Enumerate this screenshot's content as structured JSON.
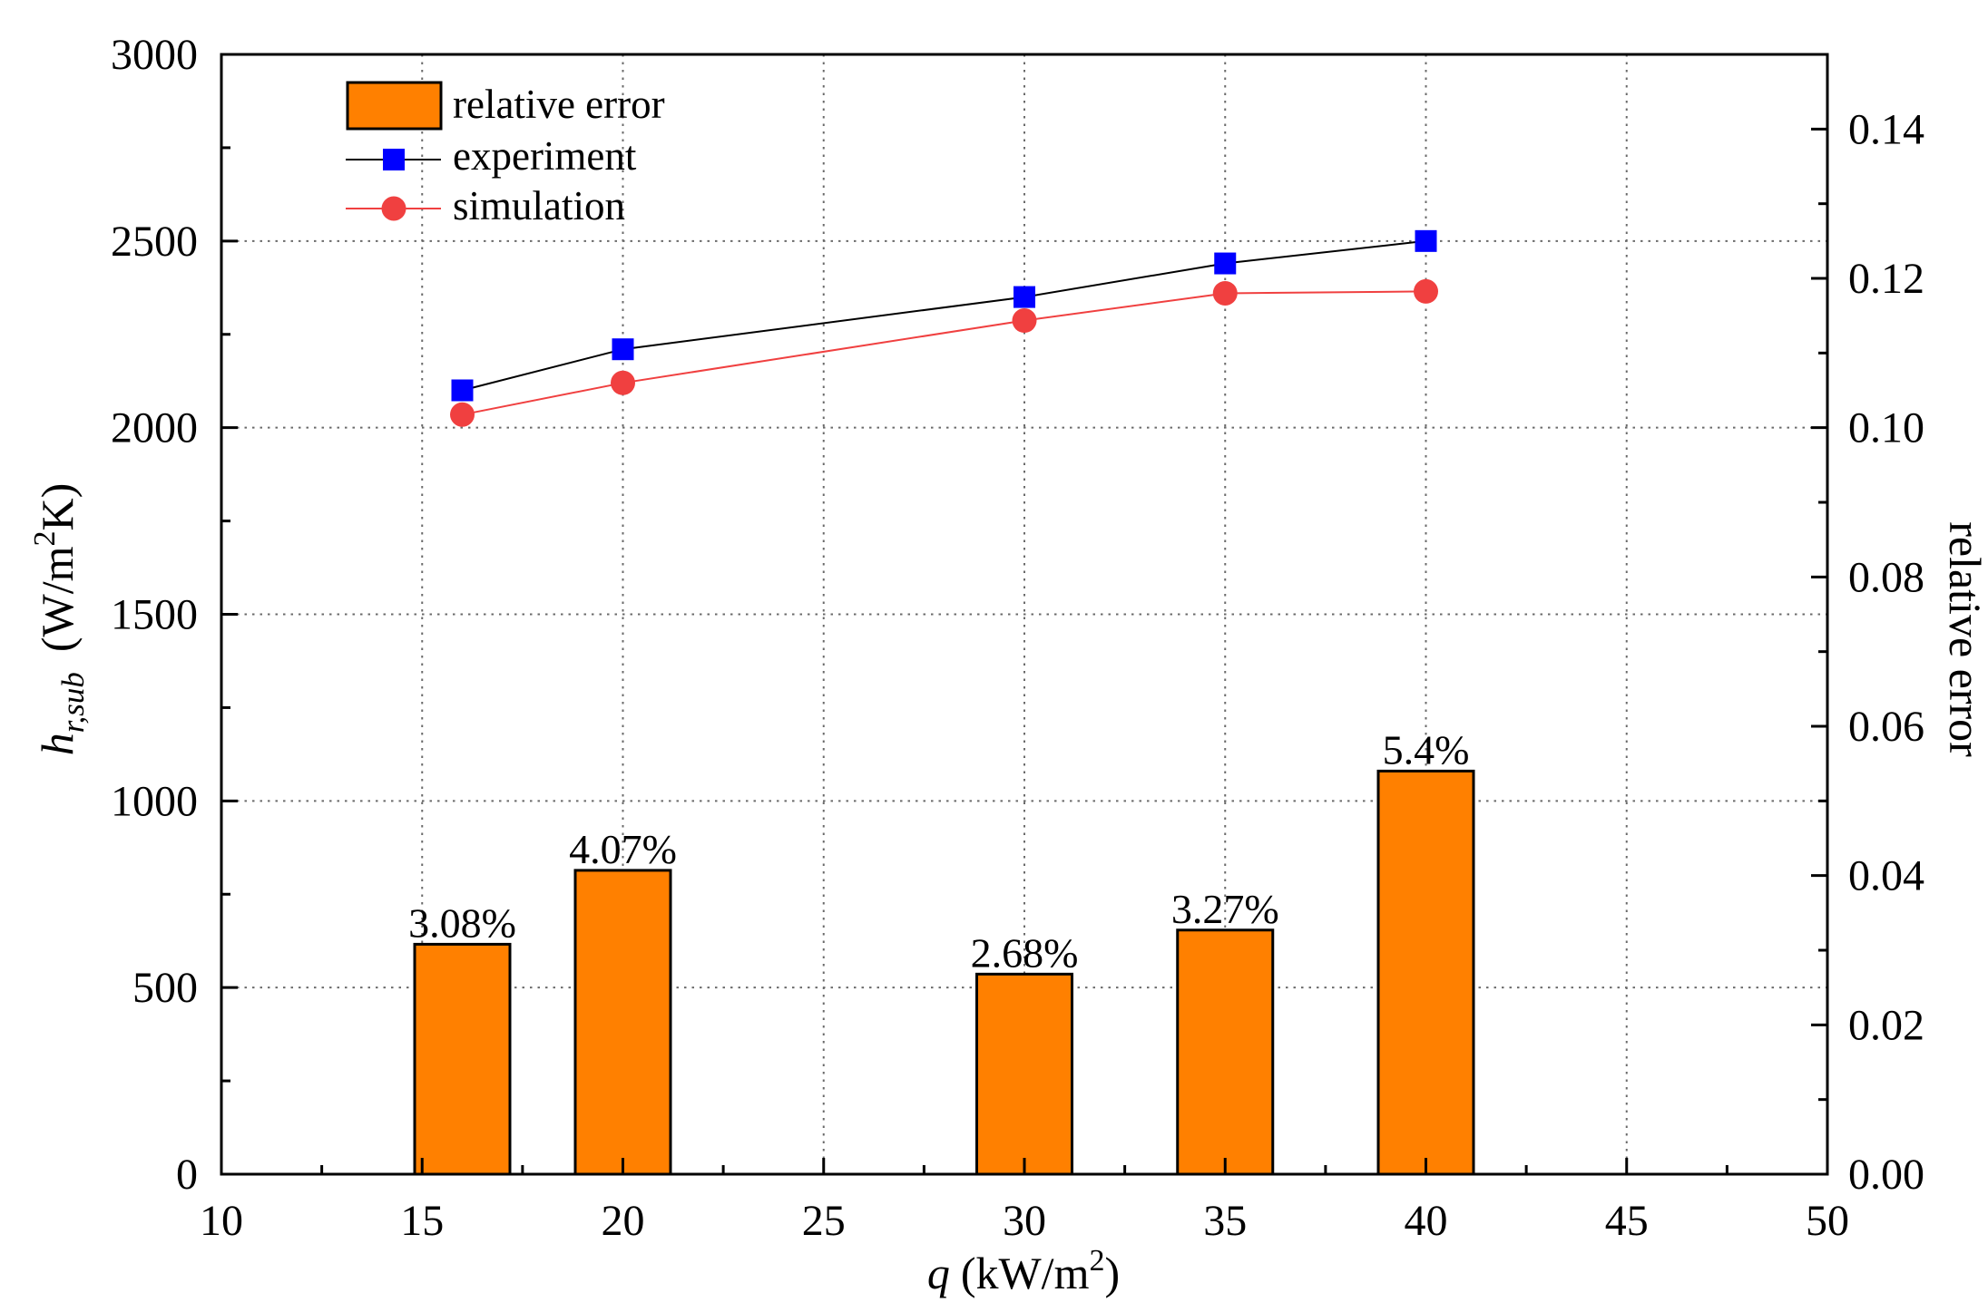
{
  "chart_data": {
    "type": "bar",
    "x": [
      16,
      20,
      30,
      35,
      40
    ],
    "xlabel": {
      "variable": "q",
      "unit": "(kW/m",
      "superscript": "2",
      "tail": ")"
    },
    "ylabel": {
      "variable": "h",
      "subscript": "r,sub",
      "unit": "(W/m",
      "superscript": "2",
      "tail": "K)"
    },
    "y2label": "relative error",
    "xlim": [
      10,
      50
    ],
    "ylim": [
      0,
      3000
    ],
    "y2lim": [
      0,
      0.15
    ],
    "xticks": [
      10,
      15,
      20,
      25,
      30,
      35,
      40,
      45,
      50
    ],
    "xtick_labels": [
      "10",
      "15",
      "20",
      "25",
      "30",
      "35",
      "40",
      "45",
      "50"
    ],
    "yticks": [
      0,
      500,
      1000,
      1500,
      2000,
      2500,
      3000
    ],
    "ytick_labels": [
      "0",
      "500",
      "1000",
      "1500",
      "2000",
      "2500",
      "3000"
    ],
    "y2ticks": [
      0,
      0.02,
      0.04,
      0.06,
      0.08,
      0.1,
      0.12,
      0.14
    ],
    "y2tick_labels": [
      "0.00",
      "0.02",
      "0.04",
      "0.06",
      "0.08",
      "0.10",
      "0.12",
      "0.14"
    ],
    "minor_tick_step": {
      "x": 2.5,
      "y": 250,
      "y2": 0.01
    },
    "grid": true,
    "legend": {
      "position": "top-left"
    },
    "series": [
      {
        "name": "relative error",
        "type": "bar",
        "axis": "right",
        "values": [
          0.0308,
          0.0407,
          0.0268,
          0.0327,
          0.054
        ],
        "labels": [
          "3.08%",
          "4.07%",
          "2.68%",
          "3.27%",
          "5.4%"
        ],
        "fill_color": "#FF8000",
        "edge_color": "#000000"
      },
      {
        "name": "experiment",
        "type": "line",
        "axis": "left",
        "marker": "square",
        "values": [
          2100,
          2210,
          2350,
          2440,
          2500
        ],
        "line_color": "#000000",
        "marker_color": "#0000FF"
      },
      {
        "name": "simulation",
        "type": "line",
        "axis": "left",
        "marker": "circle",
        "values": [
          2035,
          2120,
          2287,
          2360,
          2365
        ],
        "line_color": "#F04040",
        "marker_color": "#F04040"
      }
    ]
  }
}
